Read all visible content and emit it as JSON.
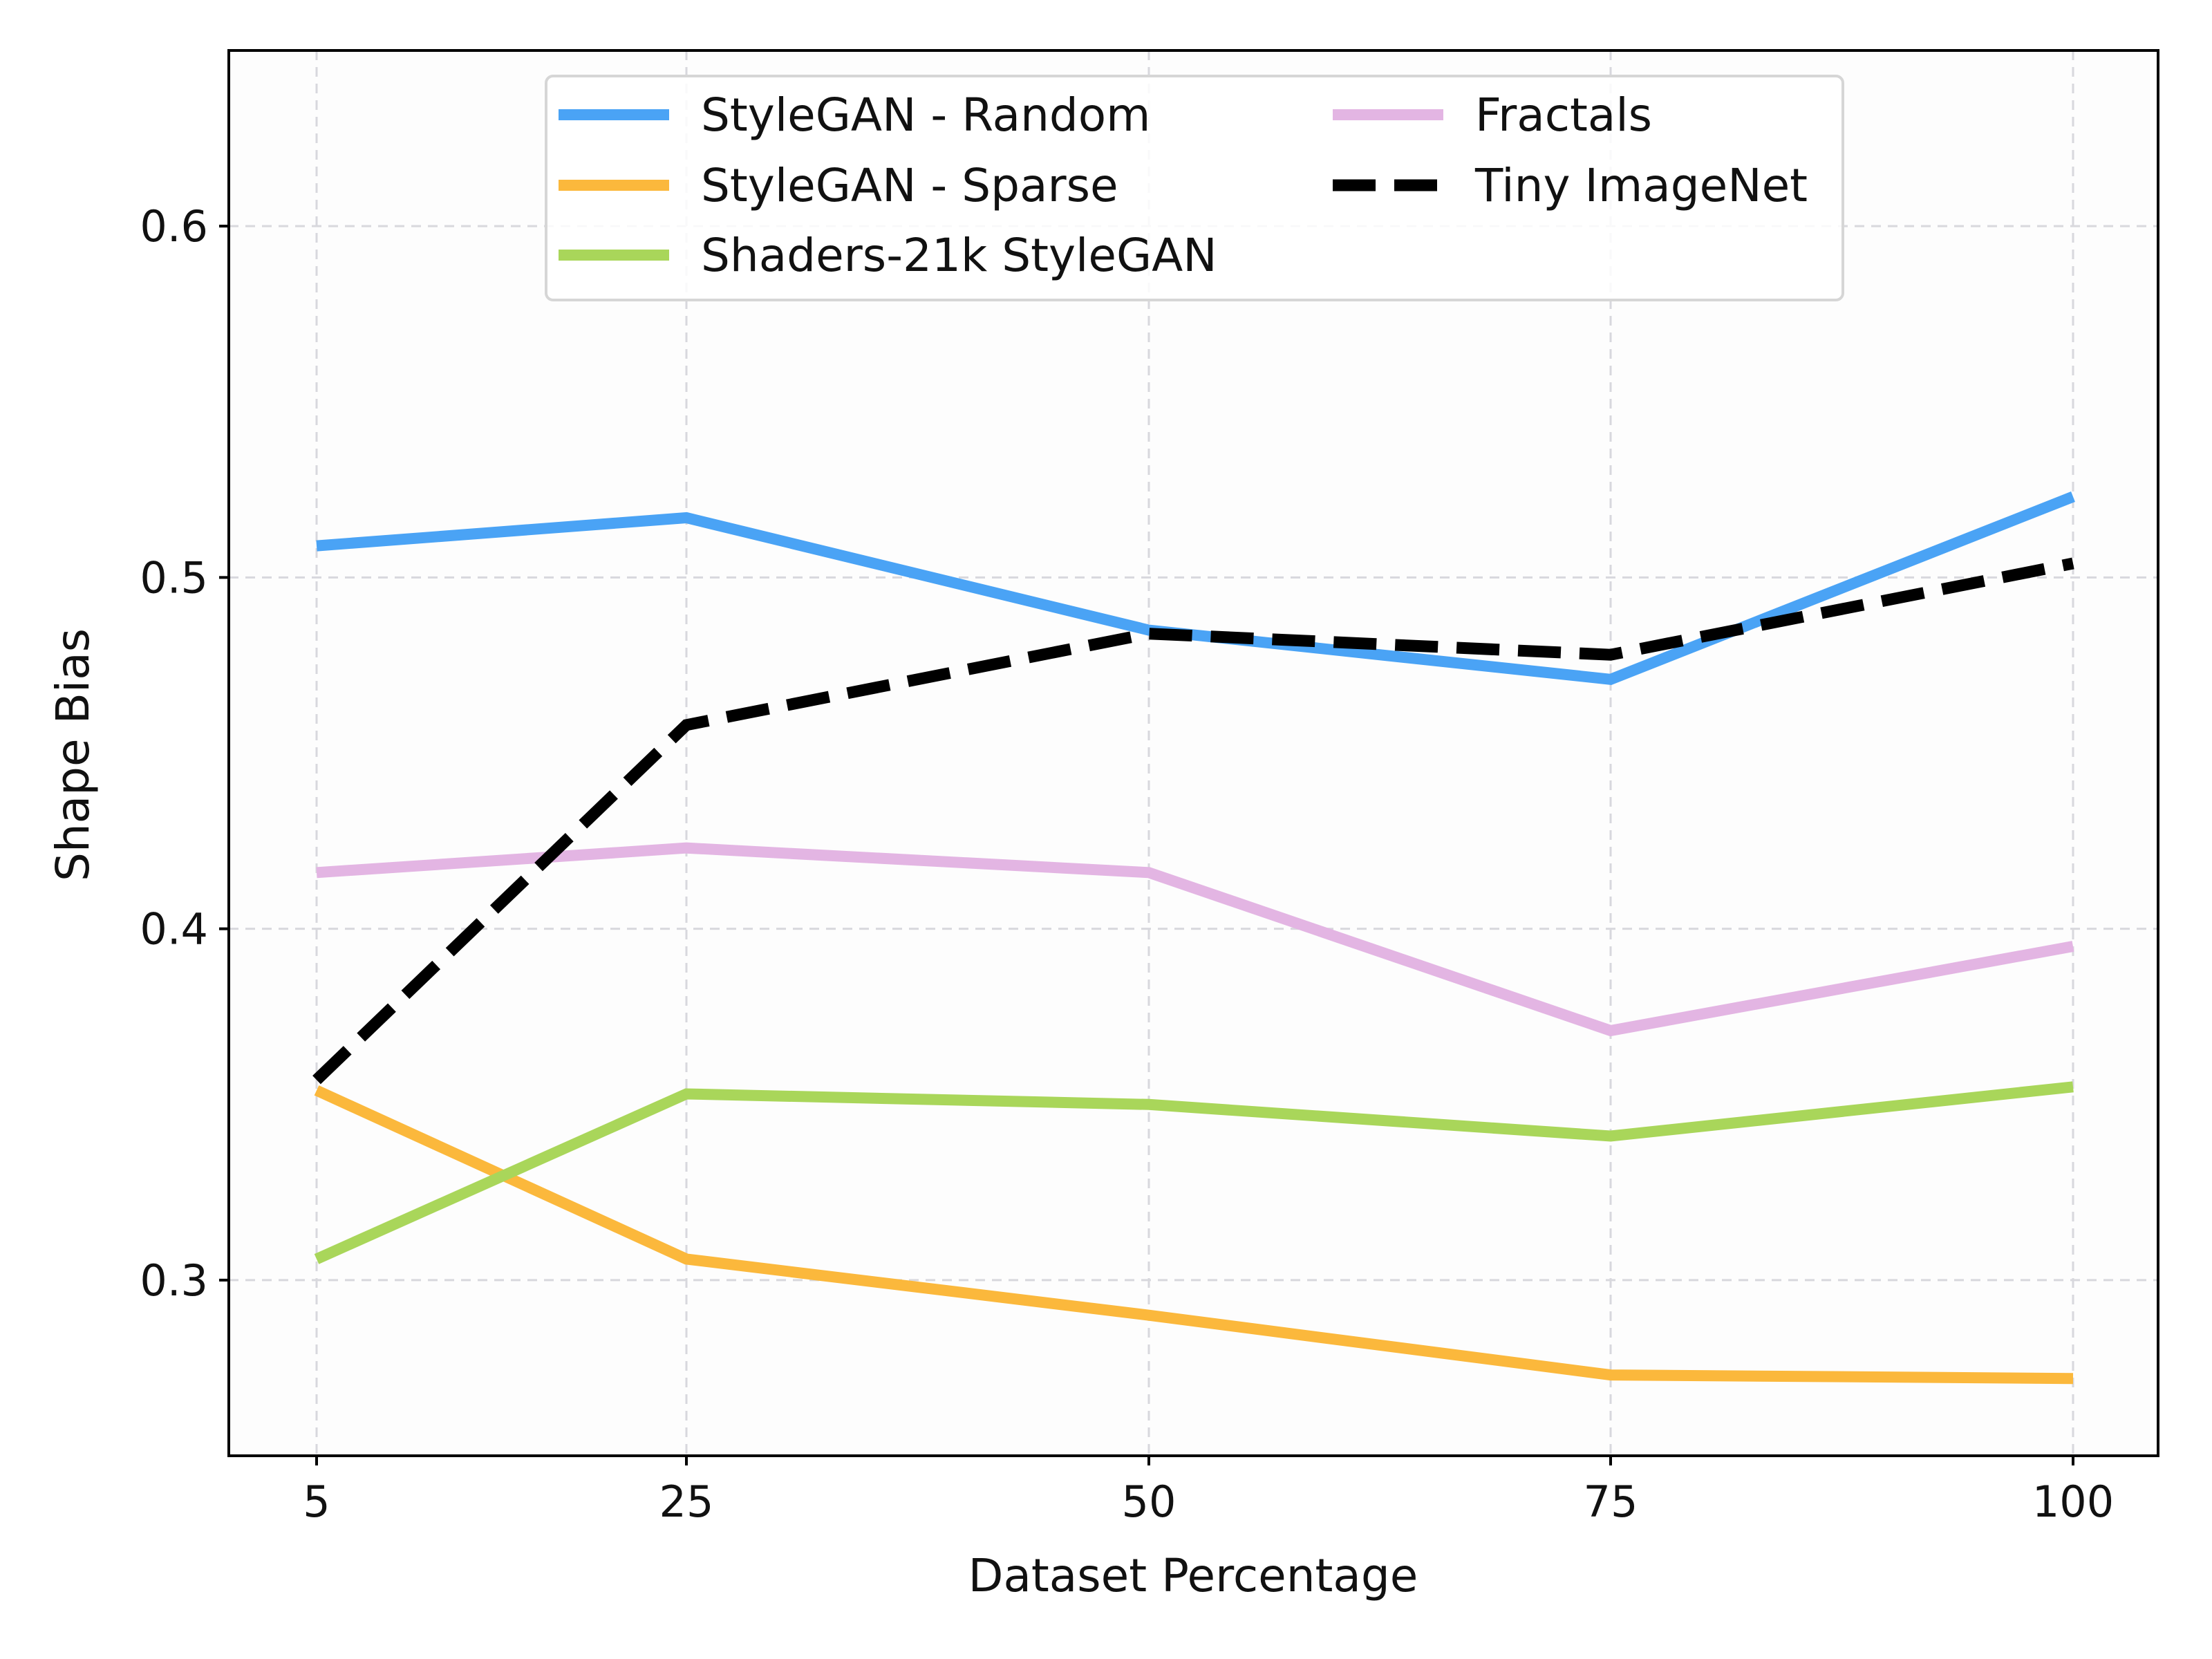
{
  "chart_data": {
    "type": "line",
    "title": "",
    "xlabel": "Dataset Percentage",
    "ylabel": "Shape Bias",
    "x": [
      5,
      25,
      50,
      75,
      100
    ],
    "x_tick_labels": [
      "5",
      "25",
      "50",
      "75",
      "100"
    ],
    "y_ticks": [
      0.3,
      0.4,
      0.5,
      0.6
    ],
    "y_tick_labels": [
      "0.3",
      "0.4",
      "0.5",
      "0.6"
    ],
    "ylim": [
      0.25,
      0.65
    ],
    "grid": true,
    "legend_position": "top-center",
    "series": [
      {
        "name": "StyleGAN - Random",
        "color": "#4aa3f5",
        "style": "solid",
        "values": [
          0.509,
          0.517,
          0.485,
          0.471,
          0.523
        ]
      },
      {
        "name": "StyleGAN - Sparse",
        "color": "#fbb83c",
        "style": "solid",
        "values": [
          0.354,
          0.306,
          0.29,
          0.273,
          0.272
        ]
      },
      {
        "name": "Shaders-21k StyleGAN",
        "color": "#a9d65a",
        "style": "solid",
        "values": [
          0.306,
          0.353,
          0.35,
          0.341,
          0.355
        ]
      },
      {
        "name": "Fractals",
        "color": "#e3b5e3",
        "style": "solid",
        "values": [
          0.416,
          0.423,
          0.416,
          0.371,
          0.395
        ]
      },
      {
        "name": "Tiny ImageNet",
        "color": "#000000",
        "style": "dashed",
        "values": [
          0.357,
          0.458,
          0.484,
          0.478,
          0.504
        ]
      }
    ]
  }
}
